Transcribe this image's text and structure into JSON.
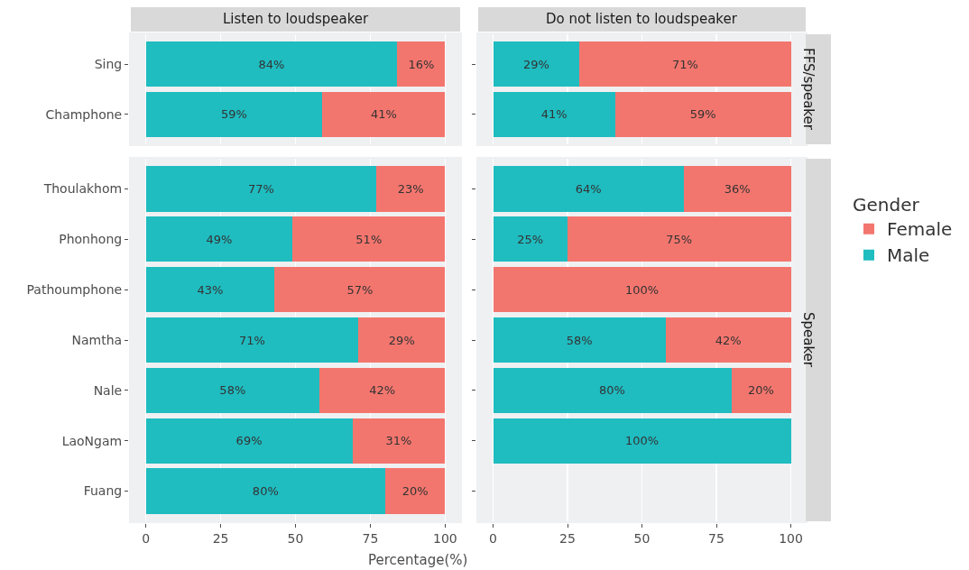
{
  "chart_data": [
    {
      "type": "bar",
      "orientation": "horizontal",
      "stacked": true,
      "title": "Listen to loudspeaker",
      "categories": [
        "Sing",
        "Champhone"
      ],
      "series": [
        {
          "color": "#1fbcc0",
          "values": [
            84,
            59
          ],
          "value_labels": [
            "84%",
            "59%"
          ]
        },
        {
          "color": "#f3766e",
          "values": [
            16,
            41
          ],
          "value_labels": [
            "16%",
            "41%"
          ]
        }
      ],
      "xlim": [
        -5,
        105
      ],
      "xticks": [
        0,
        25,
        50,
        75,
        100
      ],
      "grid": "x",
      "tick_labels": "y",
      "legend": false
    },
    {
      "type": "bar",
      "orientation": "horizontal",
      "stacked": true,
      "title": "Do not listen to loudspeaker",
      "annotations": [
        "FFS/speaker"
      ],
      "categories": [
        null,
        null
      ],
      "series": [
        {
          "color": "#1fbcc0",
          "values": [
            29,
            41
          ],
          "value_labels": [
            "29%",
            "41%"
          ]
        },
        {
          "color": "#f3766e",
          "values": [
            71,
            59
          ],
          "value_labels": [
            "71%",
            "59%"
          ]
        }
      ],
      "xlim": [
        -5,
        105
      ],
      "xticks": [
        0,
        25,
        50,
        75,
        100
      ],
      "grid": "x",
      "tick_labels": false,
      "legend": false
    },
    {
      "type": "bar",
      "orientation": "horizontal",
      "stacked": true,
      "xlabel": "Percentage(%)",
      "categories": [
        "Thoulakhom",
        "Phonhong",
        "Pathoumphone",
        "Namtha",
        "Nale",
        "LaoNgam",
        "Fuang"
      ],
      "series": [
        {
          "color": "#1fbcc0",
          "values": [
            77,
            49,
            43,
            71,
            58,
            69,
            80
          ],
          "value_labels": [
            "77%",
            "49%",
            "43%",
            "71%",
            "58%",
            "69%",
            "80%"
          ]
        },
        {
          "color": "#f3766e",
          "values": [
            23,
            51,
            57,
            29,
            42,
            31,
            20
          ],
          "value_labels": [
            "23%",
            "51%",
            "57%",
            "29%",
            "42%",
            "31%",
            "20%"
          ]
        }
      ],
      "xlim": [
        -5,
        105
      ],
      "xticks": [
        0,
        25,
        50,
        75,
        100
      ],
      "grid": "x",
      "legend": false
    },
    {
      "type": "bar",
      "orientation": "horizontal",
      "stacked": true,
      "annotations": [
        "Speaker"
      ],
      "legend_title": "Gender",
      "categories": [
        null,
        null,
        null,
        null,
        null,
        null,
        null
      ],
      "series": [
        {
          "name": "Male",
          "color": "#1fbcc0",
          "values": [
            64,
            25,
            null,
            58,
            80,
            100,
            null
          ],
          "value_labels": [
            "64%",
            "25%",
            null,
            "58%",
            "80%",
            "100%",
            null
          ]
        },
        {
          "name": "Female",
          "color": "#f3766e",
          "values": [
            36,
            75,
            100,
            42,
            20,
            null,
            null
          ],
          "value_labels": [
            "36%",
            "75%",
            "100%",
            "42%",
            "20%",
            null,
            null
          ]
        }
      ],
      "xlim": [
        -5,
        105
      ],
      "xticks": [
        0,
        25,
        50,
        75,
        100
      ],
      "grid": "x",
      "tick_labels": "x",
      "legend": "right"
    }
  ]
}
